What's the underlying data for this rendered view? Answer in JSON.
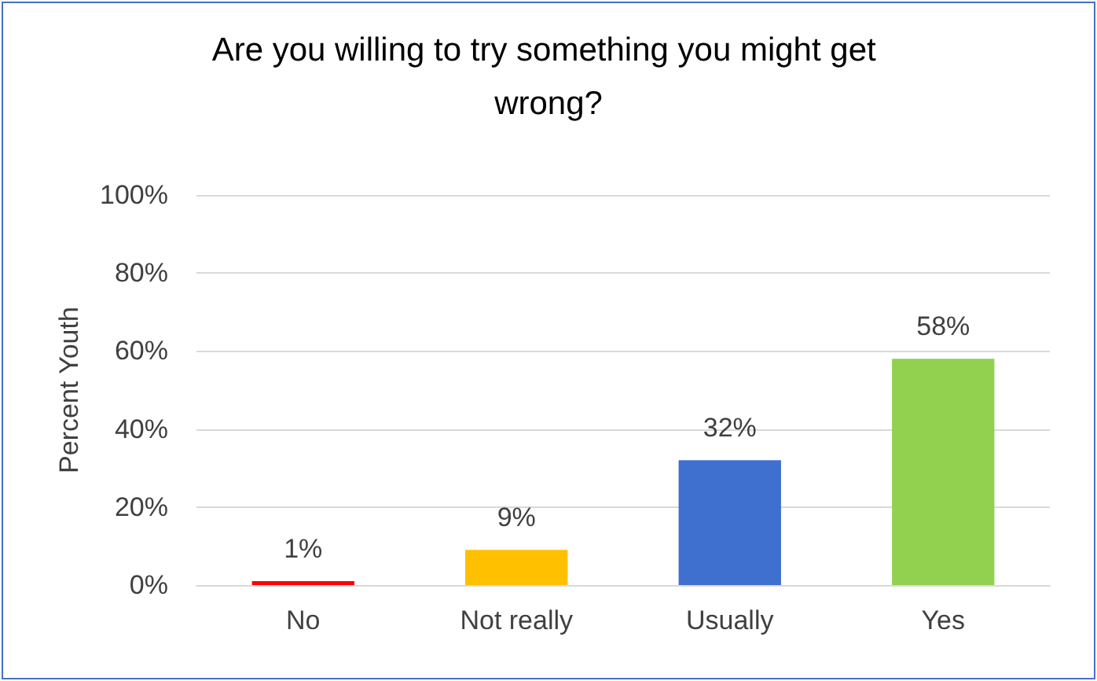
{
  "chart_data": {
    "type": "bar",
    "title": "Are you willing to try something you might get wrong?",
    "ylabel": "Percent Youth",
    "categories": [
      "No",
      "Not really",
      "Usually",
      "Yes"
    ],
    "values": [
      1,
      9,
      32,
      58
    ],
    "colors": [
      "#ff0000",
      "#ffc000",
      "#3f6fcf",
      "#92d050"
    ],
    "value_labels": [
      "1%",
      "9%",
      "32%",
      "58%"
    ],
    "ylim": [
      0,
      100
    ],
    "yticks": [
      {
        "value": 0,
        "label": "0%"
      },
      {
        "value": 20,
        "label": "20%"
      },
      {
        "value": 40,
        "label": "40%"
      },
      {
        "value": 60,
        "label": "60%"
      },
      {
        "value": 80,
        "label": "80%"
      },
      {
        "value": 100,
        "label": "100%"
      }
    ],
    "grid": "y"
  }
}
